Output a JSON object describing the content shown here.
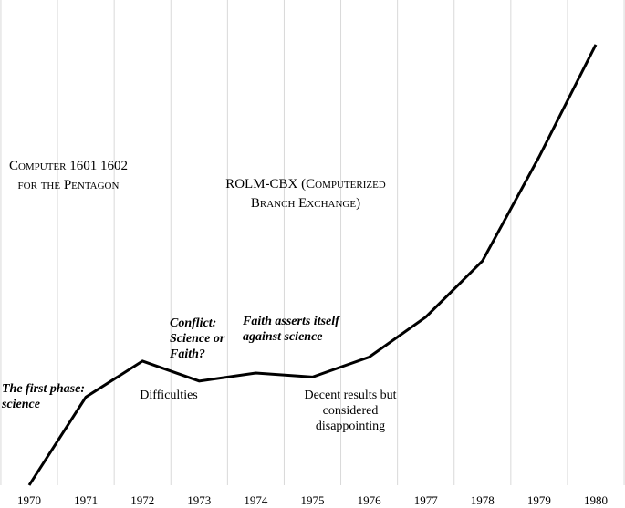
{
  "chart_data": {
    "type": "line",
    "x": [
      1970,
      1971,
      1972,
      1973,
      1974,
      1975,
      1976,
      1977,
      1978,
      1979,
      1980
    ],
    "series": [
      {
        "values": [
          0,
          22,
          31,
          26,
          28,
          27,
          32,
          42,
          56,
          82,
          110
        ]
      }
    ],
    "tick_labels": [
      "1970",
      "1971",
      "1972",
      "1973",
      "1974",
      "1975",
      "1976",
      "1977",
      "1978",
      "1979",
      "1980"
    ],
    "ylim": [
      0,
      120
    ],
    "grid": "vertical",
    "line_color": "#000000",
    "grid_color": "#d9d9d9",
    "title": "",
    "xlabel": "",
    "ylabel": "",
    "annotations": {
      "first_phase": "The first phase: science",
      "computer": "Computer 1601 1602 for the Pentagon",
      "conflict": "Conflict: Science or Faith?",
      "difficulties": "Difficulties",
      "faith": "Faith asserts itself against science",
      "rolm": "ROLM-CBX (Computerized Branch Exchange)",
      "decent": "Decent results but considered disappointing"
    }
  }
}
